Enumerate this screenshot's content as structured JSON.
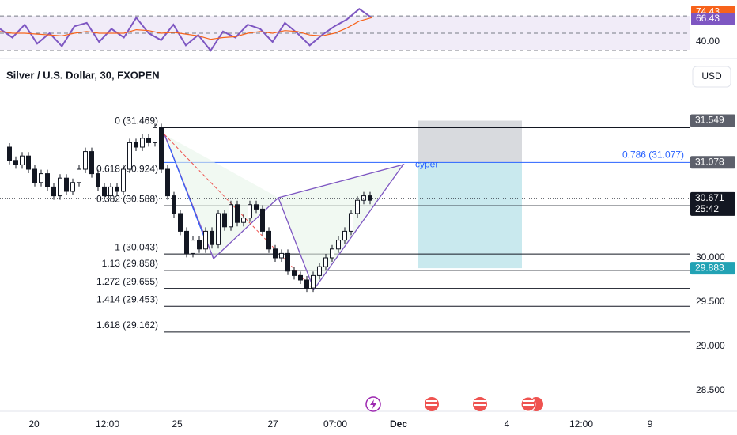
{
  "rsi_panel": {
    "badges": [
      {
        "value": 74.43,
        "label": "74.43",
        "color": "#f7631b"
      },
      {
        "value": 66.43,
        "label": "66.43",
        "color": "#7e57c2"
      }
    ],
    "ticks": [
      {
        "value": 40,
        "label": "40.00"
      }
    ],
    "bands": [
      70,
      50,
      30
    ],
    "rsi": [
      55,
      45,
      60,
      38,
      50,
      35,
      58,
      62,
      40,
      55,
      45,
      68,
      50,
      42,
      60,
      36,
      48,
      30,
      52,
      45,
      60,
      55,
      40,
      62,
      50,
      36,
      48,
      58,
      66,
      78,
      68
    ],
    "rsi_ma": [
      52,
      50,
      50,
      49,
      48,
      47,
      50,
      52,
      50,
      50,
      50,
      54,
      53,
      50,
      51,
      49,
      47,
      43,
      45,
      46,
      50,
      52,
      50,
      53,
      52,
      48,
      47,
      50,
      56,
      64,
      68
    ]
  },
  "header": {
    "symbol": "Silver / U.S. Dollar, 30, FXOPEN",
    "currency": "USD"
  },
  "price_axis": {
    "ticks": [
      {
        "value": 30.0,
        "label": "30.000"
      },
      {
        "value": 29.5,
        "label": "29.500"
      },
      {
        "value": 29.0,
        "label": "29.000"
      },
      {
        "value": 28.5,
        "label": "28.500"
      }
    ],
    "badges": [
      {
        "value": 31.549,
        "label": "31.549",
        "color": "#5d606b"
      },
      {
        "value": 31.078,
        "label": "31.078",
        "color": "#5d606b"
      },
      {
        "value": 30.671,
        "label": "30.671",
        "color": "#131722",
        "countdown": "25:42"
      },
      {
        "value": 29.883,
        "label": "29.883",
        "color": "#22a2b4"
      }
    ]
  },
  "fib_levels": [
    {
      "price": 31.469,
      "label": "0 (31.469)"
    },
    {
      "price": 30.924,
      "label": "0.618 (30.924)"
    },
    {
      "price": 30.588,
      "label": "0.382 (30.588)"
    },
    {
      "price": 30.043,
      "label": "1 (30.043)"
    },
    {
      "price": 29.858,
      "label": "1.13 (29.858)"
    },
    {
      "price": 29.655,
      "label": "1.272 (29.655)"
    },
    {
      "price": 29.453,
      "label": "1.414 (29.453)"
    },
    {
      "price": 29.162,
      "label": "1.618 (29.162)"
    }
  ],
  "cypher_level": {
    "price": 31.077,
    "label": "0.786 (31.077)",
    "tag": "cyper"
  },
  "position": {
    "stop": 31.549,
    "entry": 31.078,
    "target": 29.883
  },
  "closes": [
    31.25,
    31.1,
    31.05,
    31.15,
    31.0,
    30.85,
    30.95,
    30.8,
    30.7,
    30.9,
    30.75,
    30.85,
    31.0,
    31.2,
    30.95,
    30.8,
    30.7,
    30.8,
    30.75,
    31.0,
    31.3,
    31.25,
    31.35,
    31.3,
    31.47,
    31.0,
    30.7,
    30.5,
    30.3,
    30.05,
    30.2,
    30.1,
    30.3,
    30.15,
    30.5,
    30.35,
    30.6,
    30.4,
    30.45,
    30.6,
    30.55,
    30.3,
    30.1,
    30.0,
    30.05,
    29.85,
    29.8,
    29.75,
    29.66,
    29.8,
    29.9,
    30.0,
    30.1,
    30.2,
    30.3,
    30.5,
    30.65,
    30.7,
    30.65
  ],
  "time_axis": [
    "20",
    "12:00",
    "25",
    "27",
    "07:00",
    "Dec",
    "4",
    "12:00",
    "9"
  ]
}
